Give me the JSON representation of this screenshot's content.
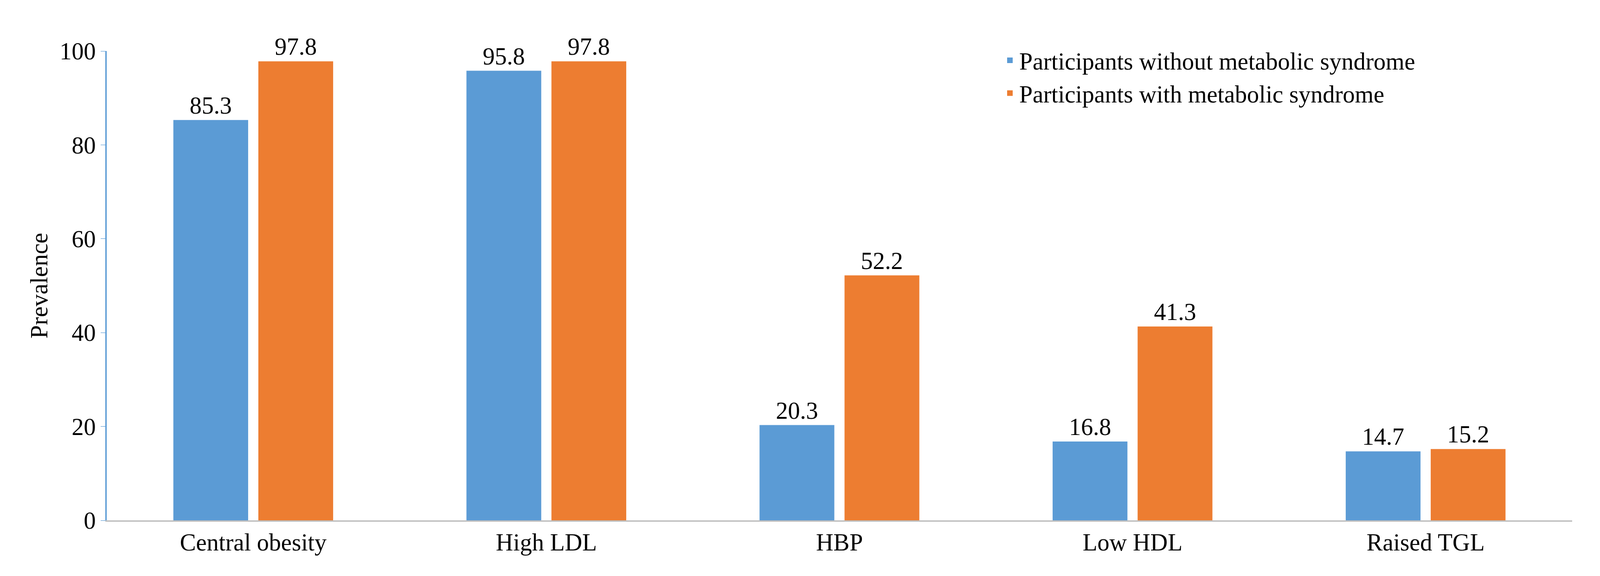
{
  "chart_data": {
    "type": "bar",
    "categories": [
      "Central obesity",
      "High LDL",
      "HBP",
      "Low HDL",
      "Raised TGL"
    ],
    "series": [
      {
        "name": "Participants without metabolic syndrome",
        "color": "#5B9BD5",
        "values": [
          85.3,
          95.8,
          20.3,
          16.8,
          14.7
        ]
      },
      {
        "name": "Participants with metabolic syndrome",
        "color": "#ED7D31",
        "values": [
          97.8,
          97.8,
          52.2,
          41.3,
          15.2
        ]
      }
    ],
    "y_label": "Prevalence",
    "ylim": [
      0,
      100
    ],
    "yticks": [
      0,
      20,
      40,
      60,
      80,
      100
    ],
    "grid": false,
    "legend": "top right",
    "data_labels": true
  }
}
